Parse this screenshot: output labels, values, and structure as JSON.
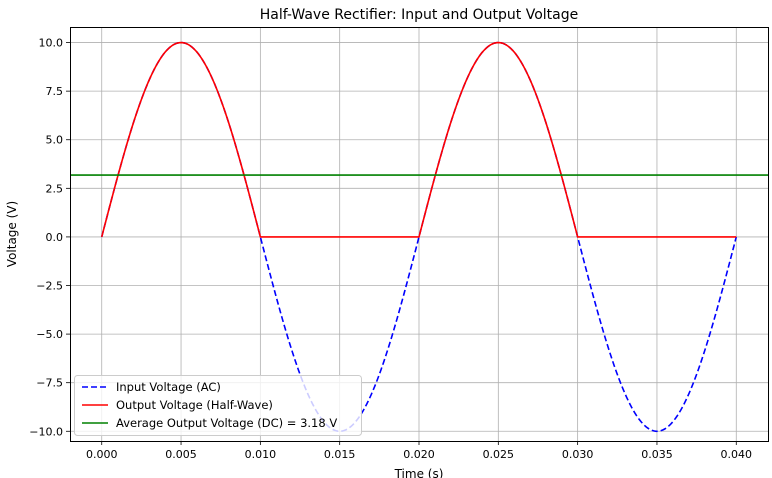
{
  "chart_data": {
    "type": "line",
    "title": "Half-Wave Rectifier: Input and Output Voltage",
    "xlabel": "Time (s)",
    "ylabel": "Voltage (V)",
    "xlim": [
      -0.002,
      0.042
    ],
    "ylim": [
      -10.5,
      10.8
    ],
    "xticks": [
      0.0,
      0.005,
      0.01,
      0.015,
      0.02,
      0.025,
      0.03,
      0.035,
      0.04
    ],
    "xtick_labels": [
      "0.000",
      "0.005",
      "0.010",
      "0.015",
      "0.020",
      "0.025",
      "0.030",
      "0.035",
      "0.040"
    ],
    "yticks": [
      10,
      7.5,
      5,
      2.5,
      0,
      -2.5,
      -5,
      -7.5,
      -10
    ],
    "ytick_labels": [
      "10.0",
      "7.5",
      "5.0",
      "2.5",
      "0.0",
      "−2.5",
      "−5.0",
      "−7.5",
      "−10.0"
    ],
    "grid": true,
    "legend_position": "lower-left",
    "series": [
      {
        "name": "Input Voltage (AC)",
        "color": "#0000ff",
        "style": "dashed",
        "x": [
          0.0,
          0.001,
          0.002,
          0.003,
          0.004,
          0.005,
          0.006,
          0.007,
          0.008,
          0.009,
          0.01,
          0.011,
          0.012,
          0.013,
          0.014,
          0.015,
          0.016,
          0.017,
          0.018,
          0.019,
          0.02,
          0.021,
          0.022,
          0.023,
          0.024,
          0.025,
          0.026,
          0.027,
          0.028,
          0.029,
          0.03,
          0.031,
          0.032,
          0.033,
          0.034,
          0.035,
          0.036,
          0.037,
          0.038,
          0.039,
          0.04
        ],
        "y": [
          0.0,
          3.09,
          5.88,
          8.09,
          9.51,
          10.0,
          9.51,
          8.09,
          5.88,
          3.09,
          0.0,
          -3.09,
          -5.88,
          -8.09,
          -9.51,
          -10.0,
          -9.51,
          -8.09,
          -5.88,
          -3.09,
          0.0,
          3.09,
          5.88,
          8.09,
          9.51,
          10.0,
          9.51,
          8.09,
          5.88,
          3.09,
          0.0,
          -3.09,
          -5.88,
          -8.09,
          -9.51,
          -10.0,
          -9.51,
          -8.09,
          -5.88,
          -3.09,
          0.0
        ]
      },
      {
        "name": "Output Voltage (Half-Wave)",
        "color": "#ff0000",
        "style": "solid",
        "x": [
          0.0,
          0.001,
          0.002,
          0.003,
          0.004,
          0.005,
          0.006,
          0.007,
          0.008,
          0.009,
          0.01,
          0.011,
          0.012,
          0.013,
          0.014,
          0.015,
          0.016,
          0.017,
          0.018,
          0.019,
          0.02,
          0.021,
          0.022,
          0.023,
          0.024,
          0.025,
          0.026,
          0.027,
          0.028,
          0.029,
          0.03,
          0.031,
          0.032,
          0.033,
          0.034,
          0.035,
          0.036,
          0.037,
          0.038,
          0.039,
          0.04
        ],
        "y": [
          0.0,
          3.09,
          5.88,
          8.09,
          9.51,
          10.0,
          9.51,
          8.09,
          5.88,
          3.09,
          0.0,
          0.0,
          0.0,
          0.0,
          0.0,
          0.0,
          0.0,
          0.0,
          0.0,
          0.0,
          0.0,
          3.09,
          5.88,
          8.09,
          9.51,
          10.0,
          9.51,
          8.09,
          5.88,
          3.09,
          0.0,
          0.0,
          0.0,
          0.0,
          0.0,
          0.0,
          0.0,
          0.0,
          0.0,
          0.0,
          0.0
        ]
      },
      {
        "name": "Average Output Voltage (DC) = 3.18 V",
        "color": "#008000",
        "style": "hline",
        "value": 3.18
      }
    ]
  }
}
